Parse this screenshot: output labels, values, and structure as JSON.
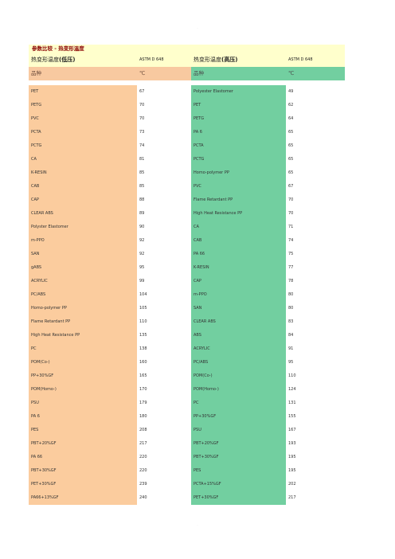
{
  "page_marks": {
    "top": "·",
    "bottom": "·"
  },
  "title": "参数比较 - 热变形温度",
  "header": {
    "left_label": "热变形温度",
    "left_paren": "(低压)",
    "left_std": "ASTM D 648",
    "right_label": "热变形温度",
    "right_paren": "(高压)",
    "right_std": "ASTM D 648"
  },
  "units": {
    "left_name": "品种",
    "left_unit": "℃",
    "right_name": "品种",
    "right_unit": "℃"
  },
  "rows": [
    {
      "l": "PET",
      "lv": "67",
      "r": "Polyester Elastomer",
      "rv": "49"
    },
    {
      "l": "PETG",
      "lv": "70",
      "r": "PET",
      "rv": "62"
    },
    {
      "l": "PVC",
      "lv": "70",
      "r": "PETG",
      "rv": "64"
    },
    {
      "l": "PCTA",
      "lv": "73",
      "r": "PA 6",
      "rv": "65"
    },
    {
      "l": "PCTG",
      "lv": "74",
      "r": "PCTA",
      "rv": "65"
    },
    {
      "l": "CA",
      "lv": "81",
      "r": "PCTG",
      "rv": "65"
    },
    {
      "l": "K-RESIN",
      "lv": "85",
      "r": "Homo-polymer PP",
      "rv": "65"
    },
    {
      "l": "CAB",
      "lv": "85",
      "r": "PVC",
      "rv": "67"
    },
    {
      "l": "CAP",
      "lv": "88",
      "r": "Flame Retardant PP",
      "rv": "70"
    },
    {
      "l": "CLEAR ABS",
      "lv": "89",
      "r": "High Heat Resistance PP",
      "rv": "70"
    },
    {
      "l": "Polyster Elastomer",
      "lv": "90",
      "r": "CA",
      "rv": "71"
    },
    {
      "l": "m-PPO",
      "lv": "92",
      "r": "CAB",
      "rv": "74"
    },
    {
      "l": "SAN",
      "lv": "92",
      "r": "PA 66",
      "rv": "75"
    },
    {
      "l": "gABS",
      "lv": "95",
      "r": "K-RESIN",
      "rv": "77"
    },
    {
      "l": "ACRYLIC",
      "lv": "99",
      "r": "CAP",
      "rv": "78"
    },
    {
      "l": "PC/ABS",
      "lv": "104",
      "r": "m-PPO",
      "rv": "80"
    },
    {
      "l": "Homo-polymer PP",
      "lv": "105",
      "r": "SAN",
      "rv": "80"
    },
    {
      "l": "Flame Retardant PP",
      "lv": "110",
      "r": "CLEAR ABS",
      "rv": "83"
    },
    {
      "l": "High Heat Resistance PP",
      "lv": "135",
      "r": "ABS",
      "rv": "84"
    },
    {
      "l": "PC",
      "lv": "138",
      "r": "ACRYLIC",
      "rv": "91"
    },
    {
      "l": "POM(Co-)",
      "lv": "160",
      "r": "PC/ABS",
      "rv": "95"
    },
    {
      "l": "PP+30%GF",
      "lv": "165",
      "r": "POM(Co-)",
      "rv": "110"
    },
    {
      "l": "POM(Homo-)",
      "lv": "170",
      "r": "POM(Homo-)",
      "rv": "124"
    },
    {
      "l": "PSU",
      "lv": "179",
      "r": "PC",
      "rv": "131"
    },
    {
      "l": "PA 6",
      "lv": "180",
      "r": "PP+30%GF",
      "rv": "155"
    },
    {
      "l": "PES",
      "lv": "208",
      "r": "PSU",
      "rv": "167"
    },
    {
      "l": "PBT+20%GF",
      "lv": "217",
      "r": "PBT+20%GF",
      "rv": "193"
    },
    {
      "l": "PA 66",
      "lv": "220",
      "r": "PBT+30%GF",
      "rv": "195"
    },
    {
      "l": "PBT+30%GF",
      "lv": "220",
      "r": "PES",
      "rv": "195"
    },
    {
      "l": "PET+30%GF",
      "lv": "239",
      "r": "PCTA+15%GF",
      "rv": "202"
    },
    {
      "l": "PA66+13%GF",
      "lv": "240",
      "r": "PET+30%GF",
      "rv": "217"
    }
  ]
}
